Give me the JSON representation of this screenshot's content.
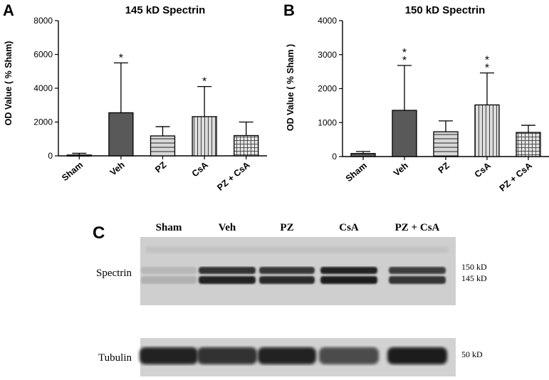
{
  "chart_data": [
    {
      "type": "bar",
      "panel": "A",
      "title": "145 kD Spectrin",
      "ylabel": "OD Value ( % Sham)",
      "ylim": [
        0,
        8000
      ],
      "yticks": [
        "0",
        "2000",
        "4000",
        "6000",
        "8000"
      ],
      "categories": [
        "Sham",
        "Veh",
        "PZ",
        "CsA",
        "PZ + CsA"
      ],
      "values": [
        50,
        2550,
        1180,
        2320,
        1200
      ],
      "errors": [
        100,
        2950,
        550,
        1780,
        800
      ],
      "fills": [
        "dark",
        "dark",
        "hstripe",
        "vstripe",
        "grid"
      ],
      "stars": [
        "",
        "*",
        "",
        "*",
        ""
      ]
    },
    {
      "type": "bar",
      "panel": "B",
      "title": "150 kD Spectrin",
      "ylabel": "OD Value ( % Sham )",
      "ylim": [
        0,
        4000
      ],
      "yticks": [
        "0",
        "1000",
        "2000",
        "3000",
        "4000"
      ],
      "categories": [
        "Sham",
        "Veh",
        "PZ",
        "CsA",
        "PZ + CsA"
      ],
      "values": [
        90,
        1360,
        730,
        1520,
        710
      ],
      "errors": [
        60,
        1320,
        320,
        940,
        210
      ],
      "fills": [
        "dark",
        "dark",
        "hstripe",
        "vstripe",
        "grid"
      ],
      "stars": [
        "",
        "**",
        "",
        "**",
        ""
      ]
    }
  ],
  "blot": {
    "panel_label": "C",
    "lanes": [
      "Sham",
      "Veh",
      "PZ",
      "CsA",
      "PZ + CsA"
    ],
    "row1_label": "Spectrin",
    "row2_label": "Tubulin",
    "marker_150": "150 kD",
    "marker_145": "145 kD",
    "marker_50": "50 kD",
    "band_intensity_upper": [
      0.12,
      0.85,
      0.8,
      0.92,
      0.78
    ],
    "band_intensity_lower": [
      0.15,
      0.92,
      0.88,
      0.95,
      0.82
    ],
    "band_intensity_tubulin": [
      0.92,
      0.85,
      0.93,
      0.7,
      0.95
    ]
  },
  "colors": {
    "bar_dark": "#595959",
    "bar_light": "#d4d4d4",
    "axis": "#000000",
    "membrane": "#cfcfcf"
  }
}
